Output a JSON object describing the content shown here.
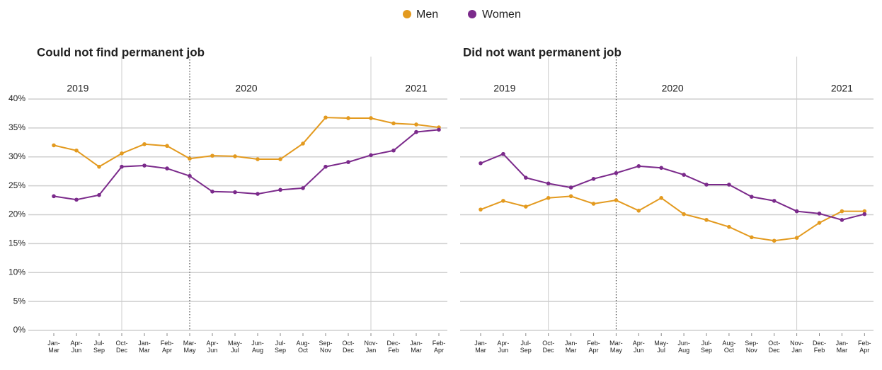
{
  "chart_data": [
    {
      "type": "line",
      "title": "Could not find permanent job",
      "year_labels": [
        "2019",
        "2020",
        "2021"
      ],
      "categories": [
        "Jan-Mar",
        "Apr-Jun",
        "Jul-Sep",
        "Oct-Dec",
        "Jan-Mar",
        "Feb-Apr",
        "Mar-May",
        "Apr-Jun",
        "May-Jul",
        "Jun-Aug",
        "Jul-Sep",
        "Aug-Oct",
        "Sep-Nov",
        "Oct-Dec",
        "Nov-Jan",
        "Dec-Feb",
        "Jan-Mar",
        "Feb-Apr"
      ],
      "series": [
        {
          "name": "Men",
          "color": "#e39a1f",
          "values": [
            32.0,
            31.1,
            28.3,
            30.6,
            32.2,
            31.9,
            29.7,
            30.2,
            30.1,
            29.6,
            29.6,
            32.3,
            36.8,
            36.7,
            36.7,
            35.8,
            35.6,
            35.1
          ]
        },
        {
          "name": "Women",
          "color": "#7b2a8b",
          "values": [
            23.2,
            22.6,
            23.4,
            28.3,
            28.5,
            28.0,
            26.7,
            24.0,
            23.9,
            23.6,
            24.3,
            24.6,
            28.3,
            29.1,
            30.3,
            31.1,
            34.3,
            34.7
          ]
        }
      ],
      "ylim": [
        0,
        40
      ],
      "yticks": [
        {
          "value": 0,
          "label": "0%"
        },
        {
          "value": 5,
          "label": "5%"
        },
        {
          "value": 10,
          "label": "10%"
        },
        {
          "value": 15,
          "label": "15%"
        },
        {
          "value": 20,
          "label": "20%"
        },
        {
          "value": 25,
          "label": "25%"
        },
        {
          "value": 30,
          "label": "30%"
        },
        {
          "value": 35,
          "label": "35%"
        },
        {
          "value": 40,
          "label": "40%"
        }
      ],
      "grid": true
    },
    {
      "type": "line",
      "title": "Did not want permanent job",
      "year_labels": [
        "2019",
        "2020",
        "2021"
      ],
      "categories": [
        "Jan-Mar",
        "Apr-Jun",
        "Jul-Sep",
        "Oct-Dec",
        "Jan-Mar",
        "Feb-Apr",
        "Mar-May",
        "Apr-Jun",
        "May-Jul",
        "Jun-Aug",
        "Jul-Sep",
        "Aug-Oct",
        "Sep-Nov",
        "Oct-Dec",
        "Nov-Jan",
        "Dec-Feb",
        "Jan-Mar",
        "Feb-Apr"
      ],
      "series": [
        {
          "name": "Men",
          "color": "#e39a1f",
          "values": [
            20.9,
            22.4,
            21.4,
            22.9,
            23.2,
            21.9,
            22.5,
            20.7,
            22.9,
            20.1,
            19.1,
            17.9,
            16.1,
            15.5,
            16.0,
            18.6,
            20.6,
            20.6
          ]
        },
        {
          "name": "Women",
          "color": "#7b2a8b",
          "values": [
            28.9,
            30.5,
            26.4,
            25.4,
            24.7,
            26.2,
            27.2,
            28.4,
            28.1,
            26.9,
            25.2,
            25.2,
            23.1,
            22.4,
            20.6,
            20.2,
            19.1,
            20.1
          ]
        }
      ],
      "ylim": [
        0,
        40
      ],
      "yticks": [
        0,
        5,
        10,
        15,
        20,
        25,
        30,
        35,
        40
      ],
      "tick_labels": false,
      "grid": true
    }
  ]
}
